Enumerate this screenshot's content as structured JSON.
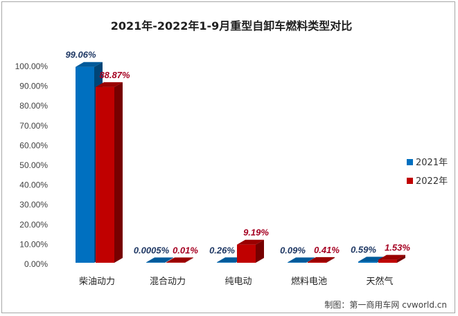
{
  "chart_data": {
    "type": "bar",
    "title": "2021年-2022年1-9月重型自卸车燃料类型对比",
    "categories": [
      "柴油动力",
      "混合动力",
      "纯电动",
      "燃料电池",
      "天然气"
    ],
    "series": [
      {
        "name": "2021年",
        "values": [
          99.06,
          0.0005,
          0.26,
          0.09,
          0.59
        ],
        "labels": [
          "99.06%",
          "0.0005%",
          "0.26%",
          "0.09%",
          "0.59%"
        ],
        "color": "#0070c0",
        "label_color": "#1f3864"
      },
      {
        "name": "2022年",
        "values": [
          88.87,
          0.01,
          9.19,
          0.41,
          1.53
        ],
        "labels": [
          "88.87%",
          "0.01%",
          "9.19%",
          "0.41%",
          "1.53%"
        ],
        "color": "#c00000",
        "label_color": "#a50021"
      }
    ],
    "yticks": [
      "0.00%",
      "10.00%",
      "20.00%",
      "30.00%",
      "40.00%",
      "50.00%",
      "60.00%",
      "70.00%",
      "80.00%",
      "90.00%",
      "100.00%"
    ],
    "ylim": [
      0,
      100
    ],
    "grid": false,
    "legend_position": "right",
    "style": "3d-column"
  },
  "credit": "制图：第一商用车网 cvworld.cn"
}
